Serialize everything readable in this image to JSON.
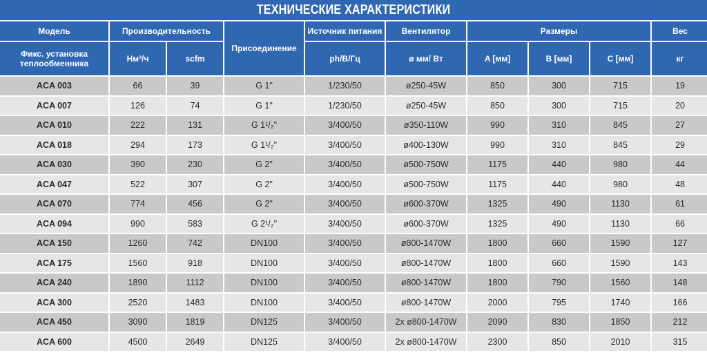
{
  "title": "ТЕХНИЧЕСКИЕ ХАРАКТЕРИСТИКИ",
  "colors": {
    "header_bg": "#2f67b1",
    "row_dark": "#c9c9c9",
    "row_light": "#e6e6e6"
  },
  "header": {
    "model": "Модель",
    "model_sub": "Фикс. установка теплообменника",
    "capacity": "Производительность",
    "capacity_nm3": "Нм³/ч",
    "capacity_scfm": "scfm",
    "connection": "Присоединение",
    "power": "Источник питания",
    "power_sub": "ph/В/Гц",
    "fan": "Вентилятор",
    "fan_sub": "ø мм/ Вт",
    "dimensions": "Размеры",
    "dim_a": "A [мм]",
    "dim_b": "B [мм]",
    "dim_c": "C [мм]",
    "weight": "Вес",
    "weight_sub": "кг"
  },
  "rows": [
    [
      "ACA 003",
      "66",
      "39",
      "G 1\"",
      "1/230/50",
      "ø250-45W",
      "850",
      "300",
      "715",
      "19"
    ],
    [
      "ACA 007",
      "126",
      "74",
      "G 1\"",
      "1/230/50",
      "ø250-45W",
      "850",
      "300",
      "715",
      "20"
    ],
    [
      "ACA 010",
      "222",
      "131",
      "G 1¹/₂\"",
      "3/400/50",
      "ø350-110W",
      "990",
      "310",
      "845",
      "27"
    ],
    [
      "ACA 018",
      "294",
      "173",
      "G 1¹/₂\"",
      "3/400/50",
      "ø400-130W",
      "990",
      "310",
      "845",
      "29"
    ],
    [
      "ACA 030",
      "390",
      "230",
      "G 2\"",
      "3/400/50",
      "ø500-750W",
      "1175",
      "440",
      "980",
      "44"
    ],
    [
      "ACA 047",
      "522",
      "307",
      "G 2\"",
      "3/400/50",
      "ø500-750W",
      "1175",
      "440",
      "980",
      "48"
    ],
    [
      "ACA 070",
      "774",
      "456",
      "G 2\"",
      "3/400/50",
      "ø600-370W",
      "1325",
      "490",
      "1130",
      "61"
    ],
    [
      "ACA 094",
      "990",
      "583",
      "G 2¹/₂\"",
      "3/400/50",
      "ø600-370W",
      "1325",
      "490",
      "1130",
      "66"
    ],
    [
      "ACA 150",
      "1260",
      "742",
      "DN100",
      "3/400/50",
      "ø800-1470W",
      "1800",
      "660",
      "1590",
      "127"
    ],
    [
      "ACA 175",
      "1560",
      "918",
      "DN100",
      "3/400/50",
      "ø800-1470W",
      "1800",
      "660",
      "1590",
      "143"
    ],
    [
      "ACA 240",
      "1890",
      "1112",
      "DN100",
      "3/400/50",
      "ø800-1470W",
      "1800",
      "790",
      "1560",
      "148"
    ],
    [
      "ACA 300",
      "2520",
      "1483",
      "DN100",
      "3/400/50",
      "ø800-1470W",
      "2000",
      "795",
      "1740",
      "166"
    ],
    [
      "ACA 450",
      "3090",
      "1819",
      "DN125",
      "3/400/50",
      "2x ø800-1470W",
      "2090",
      "830",
      "1850",
      "212"
    ],
    [
      "ACA 600",
      "4500",
      "2649",
      "DN125",
      "3/400/50",
      "2x ø800-1470W",
      "2300",
      "850",
      "2010",
      "315"
    ]
  ]
}
